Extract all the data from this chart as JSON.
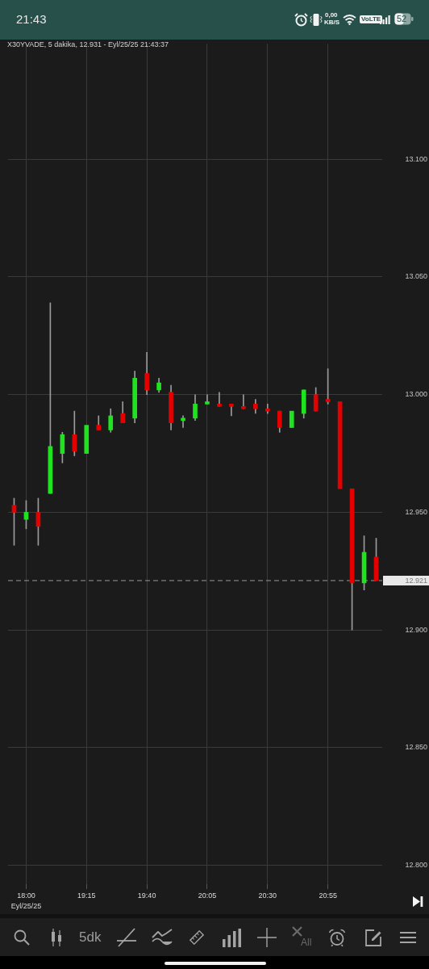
{
  "chart_data": {
    "type": "candlestick",
    "title": "X30YVADE, 5 dakika, 12.931 - Eyl/25/25 21:43:37",
    "categories": [
      null,
      "18:00\nEyl/25/25",
      null,
      null,
      null,
      null,
      "19:15",
      null,
      null,
      null,
      null,
      "19:40",
      null,
      null,
      null,
      null,
      "20:05",
      null,
      null,
      null,
      null,
      "20:30",
      null,
      null,
      null,
      null,
      "20:55",
      null,
      null,
      null,
      null
    ],
    "ohlc": [
      [
        12.953,
        12.956,
        12.936,
        12.95
      ],
      [
        12.947,
        12.955,
        12.943,
        12.95
      ],
      [
        12.95,
        12.956,
        12.936,
        12.944
      ],
      [
        12.958,
        13.039,
        12.958,
        12.978
      ],
      [
        12.975,
        12.984,
        12.971,
        12.983
      ],
      [
        12.983,
        12.993,
        12.974,
        12.976
      ],
      [
        12.975,
        12.987,
        12.975,
        12.987
      ],
      [
        12.987,
        12.991,
        12.985,
        12.985
      ],
      [
        12.985,
        12.994,
        12.984,
        12.991
      ],
      [
        12.992,
        12.997,
        12.988,
        12.988
      ],
      [
        12.99,
        13.01,
        12.988,
        13.007
      ],
      [
        13.009,
        13.018,
        13.0,
        13.002
      ],
      [
        13.002,
        13.007,
        13.001,
        13.005
      ],
      [
        13.001,
        13.004,
        12.985,
        12.988
      ],
      [
        12.989,
        12.991,
        12.986,
        12.99
      ],
      [
        12.99,
        13.0,
        12.989,
        12.996
      ],
      [
        12.996,
        13.0,
        12.996,
        12.997
      ],
      [
        12.996,
        13.001,
        12.995,
        12.995
      ],
      [
        12.996,
        12.996,
        12.991,
        12.995
      ],
      [
        12.995,
        13.0,
        12.994,
        12.994
      ],
      [
        12.996,
        12.998,
        12.992,
        12.994
      ],
      [
        12.994,
        12.996,
        12.992,
        12.993
      ],
      [
        12.993,
        12.993,
        12.984,
        12.986
      ],
      [
        12.986,
        12.993,
        12.986,
        12.993
      ],
      [
        12.992,
        13.002,
        12.99,
        13.002
      ],
      [
        13.0,
        13.003,
        12.993,
        12.993
      ],
      [
        12.998,
        13.011,
        12.996,
        12.997
      ],
      [
        12.997,
        12.997,
        12.96,
        12.96
      ],
      [
        12.96,
        12.96,
        12.9,
        12.92
      ],
      [
        12.92,
        12.94,
        12.917,
        12.933
      ],
      [
        12.931,
        12.939,
        12.921,
        12.921
      ]
    ],
    "colors": [
      "#e50000",
      "#1ee31e",
      "#e50000",
      "#1ee31e",
      "#1ee31e",
      "#e50000",
      "#1ee31e",
      "#e50000",
      "#1ee31e",
      "#e50000",
      "#1ee31e",
      "#e50000",
      "#1ee31e",
      "#e50000",
      "#1ee31e",
      "#1ee31e",
      "#1ee31e",
      "#e50000",
      "#e50000",
      "#e50000",
      "#e50000",
      "#e50000",
      "#e50000",
      "#1ee31e",
      "#1ee31e",
      "#e50000",
      "#e50000",
      "#e50000",
      "#e50000",
      "#1ee31e",
      "#e50000"
    ],
    "ylim": [
      12.792,
      13.149
    ],
    "yticks": [
      {
        "value": 12.8,
        "label": "12.800"
      },
      {
        "value": 12.85,
        "label": "12.850"
      },
      {
        "value": 12.9,
        "label": "12.900"
      },
      {
        "value": 12.95,
        "label": "12.950"
      },
      {
        "value": 13.0,
        "label": "13.000"
      },
      {
        "value": 13.05,
        "label": "13.050"
      },
      {
        "value": 13.1,
        "label": "13.100"
      }
    ],
    "grid": true,
    "ref_lines": [
      {
        "axis": "y",
        "value": 12.921,
        "label": "12.921",
        "color": "#9a9a9a",
        "line_style": "dashed"
      }
    ],
    "annotations": [
      "21:43",
      "0,00",
      "KB/S",
      "VoLTE",
      "52",
      "5dk",
      "All"
    ]
  }
}
